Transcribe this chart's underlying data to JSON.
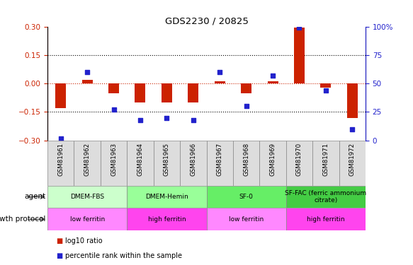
{
  "title": "GDS2230 / 20825",
  "samples": [
    "GSM81961",
    "GSM81962",
    "GSM81963",
    "GSM81964",
    "GSM81965",
    "GSM81966",
    "GSM81967",
    "GSM81968",
    "GSM81969",
    "GSM81970",
    "GSM81971",
    "GSM81972"
  ],
  "log10_ratio": [
    -0.13,
    0.02,
    -0.05,
    -0.1,
    -0.1,
    -0.1,
    0.01,
    -0.05,
    0.01,
    0.295,
    -0.02,
    -0.18
  ],
  "percentile_rank": [
    2,
    60,
    27,
    18,
    20,
    18,
    60,
    30,
    57,
    99,
    44,
    10
  ],
  "ylim_left": [
    -0.3,
    0.3
  ],
  "ylim_right": [
    0,
    100
  ],
  "yticks_left": [
    -0.3,
    -0.15,
    0,
    0.15,
    0.3
  ],
  "yticks_right": [
    0,
    25,
    50,
    75,
    100
  ],
  "hlines_dotted": [
    -0.15,
    0.15
  ],
  "hline_zero": 0,
  "bar_color": "#CC2200",
  "dot_color": "#2222CC",
  "agent_groups": [
    {
      "label": "DMEM-FBS",
      "start": 0,
      "end": 3,
      "color": "#CCFFCC"
    },
    {
      "label": "DMEM-Hemin",
      "start": 3,
      "end": 6,
      "color": "#99FF99"
    },
    {
      "label": "SF-0",
      "start": 6,
      "end": 9,
      "color": "#66EE66"
    },
    {
      "label": "SF-FAC (ferric ammonium\ncitrate)",
      "start": 9,
      "end": 12,
      "color": "#44CC44"
    }
  ],
  "protocol_groups": [
    {
      "label": "low ferritin",
      "start": 0,
      "end": 3,
      "color": "#FF88FF"
    },
    {
      "label": "high ferritin",
      "start": 3,
      "end": 6,
      "color": "#FF44EE"
    },
    {
      "label": "low ferritin",
      "start": 6,
      "end": 9,
      "color": "#FF88FF"
    },
    {
      "label": "high ferritin",
      "start": 9,
      "end": 12,
      "color": "#FF44EE"
    }
  ],
  "legend_bar_label": "log10 ratio",
  "legend_dot_label": "percentile rank within the sample",
  "tick_color_left": "#CC2200",
  "tick_color_right": "#2222CC",
  "background_color": "#ffffff",
  "plot_bg": "#ffffff",
  "bar_width": 0.4,
  "dot_size": 25
}
